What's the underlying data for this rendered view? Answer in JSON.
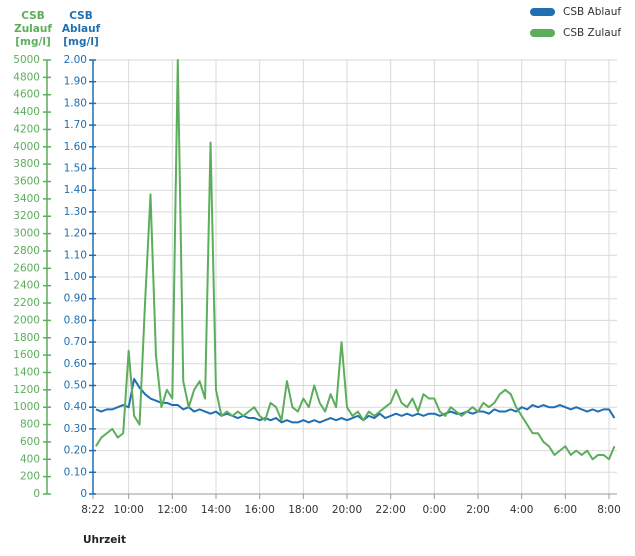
{
  "chart_data": {
    "type": "line",
    "xlabel": "Uhrzeit",
    "ylabel": "CSB Zulauf [mg/l]",
    "y2label": "CSB Ablauf [mg/l]",
    "legend": "upper right",
    "grid": true,
    "x": [
      "8:30",
      "8:45",
      "9:00",
      "9:15",
      "9:30",
      "9:45",
      "10:00",
      "10:15",
      "10:30",
      "10:45",
      "11:00",
      "11:15",
      "11:30",
      "11:45",
      "12:00",
      "12:15",
      "12:30",
      "12:45",
      "13:00",
      "13:15",
      "13:30",
      "13:45",
      "14:00",
      "14:15",
      "14:30",
      "14:45",
      "15:00",
      "15:15",
      "15:30",
      "15:45",
      "16:00",
      "16:15",
      "16:30",
      "16:45",
      "17:00",
      "17:15",
      "17:30",
      "17:45",
      "18:00",
      "18:15",
      "18:30",
      "18:45",
      "19:00",
      "19:15",
      "19:30",
      "19:45",
      "20:00",
      "20:15",
      "20:30",
      "20:45",
      "21:00",
      "21:15",
      "21:30",
      "21:45",
      "22:00",
      "22:15",
      "22:30",
      "22:45",
      "23:00",
      "23:15",
      "23:30",
      "23:45",
      "0:00",
      "0:15",
      "0:30",
      "0:45",
      "1:00",
      "1:15",
      "1:30",
      "1:45",
      "2:00",
      "2:15",
      "2:30",
      "2:45",
      "3:00",
      "3:15",
      "3:30",
      "3:45",
      "4:00",
      "4:15",
      "4:30",
      "4:45",
      "5:00",
      "5:15",
      "5:30",
      "5:45",
      "6:00",
      "6:15",
      "6:30",
      "6:45",
      "7:00",
      "7:15",
      "7:30",
      "7:45",
      "8:00",
      "8:15"
    ],
    "xlim": [
      "8:22",
      "8:22"
    ],
    "xticks": [
      "8:22",
      "10:00",
      "12:00",
      "14:00",
      "16:00",
      "18:00",
      "20:00",
      "22:00",
      "0:00",
      "2:00",
      "4:00",
      "6:00",
      "8:00"
    ],
    "ylim": [
      0,
      5000
    ],
    "yticks": [
      0,
      200,
      400,
      600,
      800,
      1000,
      1200,
      1400,
      1600,
      1800,
      2000,
      2200,
      2400,
      2600,
      2800,
      3000,
      3200,
      3400,
      3600,
      3800,
      4000,
      4200,
      4400,
      4600,
      4800,
      5000
    ],
    "y2lim": [
      0,
      2
    ],
    "y2ticks": [
      0,
      {
        "value": 0.1,
        "label": "0.10"
      },
      {
        "value": 0.2,
        "label": "0.20"
      },
      {
        "value": 0.3,
        "label": "0.30"
      },
      {
        "value": 0.4,
        "label": "0.40"
      },
      {
        "value": 0.5,
        "label": "0.50"
      },
      {
        "value": 0.6,
        "label": "0.60"
      },
      {
        "value": 0.7,
        "label": "0.70"
      },
      {
        "value": 0.8,
        "label": "0.80"
      },
      {
        "value": 0.9,
        "label": "0.90"
      },
      {
        "value": 1,
        "label": "1.00"
      },
      {
        "value": 1.1,
        "label": "1.10"
      },
      {
        "value": 1.2,
        "label": "1.20"
      },
      {
        "value": 1.3,
        "label": "1.30"
      },
      {
        "value": 1.4,
        "label": "1.40"
      },
      {
        "value": 1.5,
        "label": "1.50"
      },
      {
        "value": 1.6,
        "label": "1.60"
      },
      {
        "value": 1.7,
        "label": "1.70"
      },
      {
        "value": 1.8,
        "label": "1.80"
      },
      {
        "value": 1.9,
        "label": "1.90"
      },
      {
        "value": 2,
        "label": "2.00"
      }
    ],
    "series": [
      {
        "name": "CSB Ablauf",
        "color": "#1f6fb2",
        "axis": "y2",
        "values": [
          0.39,
          0.38,
          0.39,
          0.39,
          0.4,
          0.41,
          0.4,
          0.53,
          0.49,
          0.46,
          0.44,
          0.43,
          0.42,
          0.42,
          0.41,
          0.41,
          0.39,
          0.4,
          0.38,
          0.39,
          0.38,
          0.37,
          0.38,
          0.36,
          0.37,
          0.36,
          0.35,
          0.36,
          0.35,
          0.35,
          0.34,
          0.35,
          0.34,
          0.35,
          0.33,
          0.34,
          0.33,
          0.33,
          0.34,
          0.33,
          0.34,
          0.33,
          0.34,
          0.35,
          0.34,
          0.35,
          0.34,
          0.35,
          0.36,
          0.34,
          0.36,
          0.35,
          0.37,
          0.35,
          0.36,
          0.37,
          0.36,
          0.37,
          0.36,
          0.37,
          0.36,
          0.37,
          0.37,
          0.36,
          0.37,
          0.38,
          0.37,
          0.37,
          0.38,
          0.37,
          0.38,
          0.38,
          0.37,
          0.39,
          0.38,
          0.38,
          0.39,
          0.38,
          0.4,
          0.39,
          0.41,
          0.4,
          0.41,
          0.4,
          0.4,
          0.41,
          0.4,
          0.39,
          0.4,
          0.39,
          0.38,
          0.39,
          0.38,
          0.39,
          0.39,
          0.35
        ]
      },
      {
        "name": "CSB Zulauf",
        "color": "#5cae5c",
        "values": [
          550,
          650,
          700,
          750,
          650,
          700,
          1650,
          900,
          800,
          2200,
          3450,
          1600,
          1000,
          1200,
          1100,
          5000,
          1300,
          1000,
          1200,
          1300,
          1100,
          4050,
          1200,
          900,
          950,
          900,
          950,
          900,
          950,
          1000,
          900,
          850,
          1050,
          1000,
          850,
          1300,
          1000,
          950,
          1100,
          1000,
          1250,
          1050,
          950,
          1150,
          1000,
          1750,
          1000,
          900,
          950,
          850,
          950,
          900,
          950,
          1000,
          1050,
          1200,
          1050,
          1000,
          1100,
          950,
          1150,
          1100,
          1100,
          950,
          900,
          1000,
          950,
          900,
          950,
          1000,
          950,
          1050,
          1000,
          1050,
          1150,
          1200,
          1150,
          1000,
          900,
          800,
          700,
          700,
          600,
          550,
          450,
          500,
          550,
          450,
          500,
          450,
          500,
          400,
          450,
          450,
          400,
          550
        ]
      }
    ]
  }
}
